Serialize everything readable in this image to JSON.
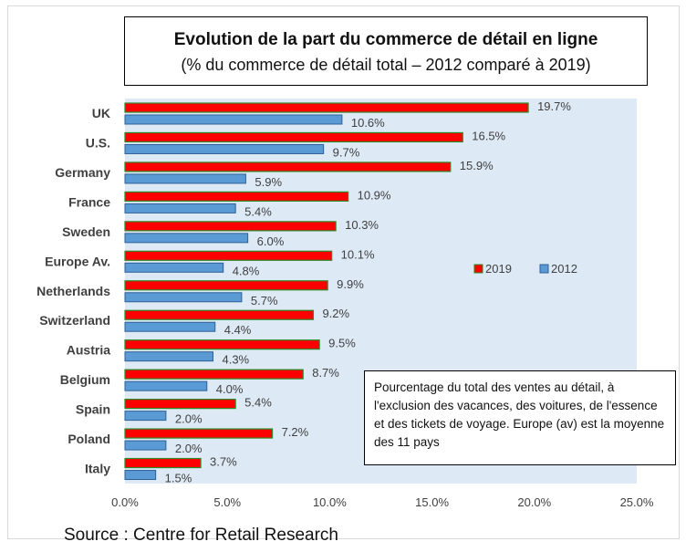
{
  "header": {
    "title": "Evolution de la part du commerce de détail en ligne",
    "subtitle": "(% du commerce de détail total – 2012 comparé à 2019)"
  },
  "note": "Pourcentage du total des ventes au détail, à l'exclusion des vacances, des voitures, de l'essence et des tickets de voyage. Europe (av) est la moyenne des 11 pays",
  "source": "Source : Centre for Retail Research",
  "colors": {
    "series_2019": "#ff0000",
    "series_2019_border": "#2a8a2a",
    "series_2012": "#5b9bd5",
    "series_2012_border": "#2e5f95",
    "plot_bg": "#dde9f5"
  },
  "chart_data": {
    "type": "bar",
    "orientation": "horizontal",
    "categories": [
      "UK",
      "U.S.",
      "Germany",
      "France",
      "Sweden",
      "Europe Av.",
      "Netherlands",
      "Switzerland",
      "Austria",
      "Belgium",
      "Spain",
      "Poland",
      "Italy"
    ],
    "series": [
      {
        "name": "2019",
        "values": [
          19.7,
          16.5,
          15.9,
          10.9,
          10.3,
          10.1,
          9.9,
          9.2,
          9.5,
          8.7,
          5.4,
          7.2,
          3.7
        ],
        "labels": [
          "19.7%",
          "16.5%",
          "15.9%",
          "10.9%",
          "10.3%",
          "10.1%",
          "9.9%",
          "9.2%",
          "9.5%",
          "8.7%",
          "5.4%",
          "7.2%",
          "3.7%"
        ]
      },
      {
        "name": "2012",
        "values": [
          10.6,
          9.7,
          5.9,
          5.4,
          6.0,
          4.8,
          5.7,
          4.4,
          4.3,
          4.0,
          2.0,
          2.0,
          1.5
        ],
        "labels": [
          "10.6%",
          "9.7%",
          "5.9%",
          "5.4%",
          "6.0%",
          "4.8%",
          "5.7%",
          "4.4%",
          "4.3%",
          "4.0%",
          "2.0%",
          "2.0%",
          "1.5%"
        ]
      }
    ],
    "xlim": [
      0,
      25
    ],
    "x_ticks": [
      "0.0%",
      "5.0%",
      "10.0%",
      "15.0%",
      "20.0%",
      "25.0%"
    ],
    "grid": false,
    "legend_position": "right"
  }
}
